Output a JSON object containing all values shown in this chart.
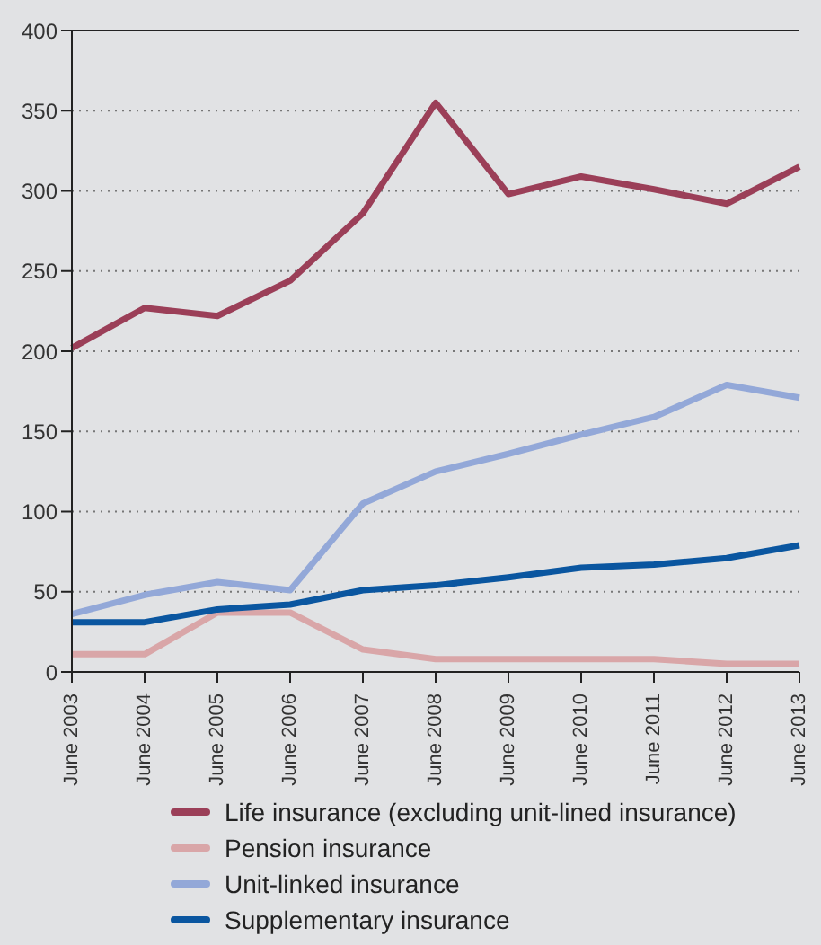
{
  "chart_data": {
    "type": "line",
    "categories": [
      "June 2003",
      "June 2004",
      "June 2005",
      "June 2006",
      "June 2007",
      "June 2008",
      "June 2009",
      "June 2010",
      "June 2011",
      "June 2012",
      "June 2013"
    ],
    "series": [
      {
        "name": "Life insurance (excluding unit-lined insurance)",
        "color": "#9b3f58",
        "values": [
          202,
          227,
          222,
          244,
          286,
          355,
          298,
          309,
          301,
          292,
          315
        ]
      },
      {
        "name": "Pension insurance",
        "color": "#d9a6a8",
        "values": [
          11,
          11,
          37,
          37,
          14,
          8,
          8,
          8,
          8,
          5,
          5
        ]
      },
      {
        "name": "Unit-linked insurance",
        "color": "#93a8d8",
        "values": [
          36,
          48,
          56,
          51,
          105,
          125,
          136,
          148,
          159,
          179,
          171
        ]
      },
      {
        "name": "Supplementary insurance",
        "color": "#0a56a0",
        "values": [
          31,
          31,
          39,
          42,
          51,
          54,
          59,
          65,
          67,
          71,
          79
        ]
      }
    ],
    "ylim": [
      0,
      400
    ],
    "yticks": [
      0,
      50,
      100,
      150,
      200,
      250,
      300,
      350,
      400
    ],
    "grid": "y",
    "legend": "bottom",
    "marker": "none",
    "line_style": "solid"
  }
}
